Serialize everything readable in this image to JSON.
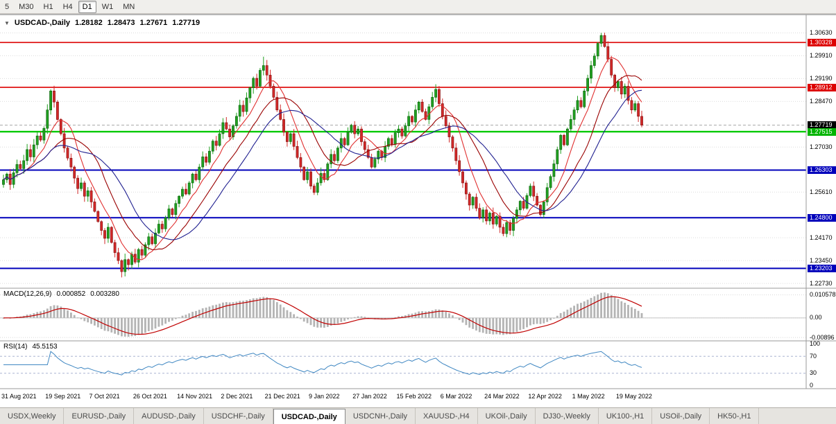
{
  "toolbar": {
    "timeframes": [
      "5",
      "M30",
      "H1",
      "H4",
      "D1",
      "W1",
      "MN"
    ],
    "selected": "D1"
  },
  "chart": {
    "collapse_icon": "▼",
    "symbol": "USDCAD-,Daily",
    "open": "1.28182",
    "high": "1.28473",
    "low": "1.27671",
    "close": "1.27719"
  },
  "macd_panel": {
    "name": "MACD(12,26,9)",
    "value1": "0.000852",
    "value2": "0.003280"
  },
  "rsi_panel": {
    "name": "RSI(14)",
    "value": "45.5153"
  },
  "price_axis": [
    {
      "label": "1.30630",
      "value": 1.3063,
      "badge": null
    },
    {
      "label": "1.30328",
      "value": 1.30328,
      "badge": "#dd0000"
    },
    {
      "label": "1.29910",
      "value": 1.2991,
      "badge": null
    },
    {
      "label": "1.29190",
      "value": 1.2919,
      "badge": null
    },
    {
      "label": "1.28912",
      "value": 1.28912,
      "badge": "#dd0000"
    },
    {
      "label": "1.28470",
      "value": 1.2847,
      "badge": null
    },
    {
      "label": "1.27719",
      "value": 1.27719,
      "badge": "#000000"
    },
    {
      "label": "1.27515",
      "value": 1.27515,
      "badge": "#00b400"
    },
    {
      "label": "1.27030",
      "value": 1.2703,
      "badge": null
    },
    {
      "label": "1.26303",
      "value": 1.26303,
      "badge": "#0000bb"
    },
    {
      "label": "1.25610",
      "value": 1.2561,
      "badge": null
    },
    {
      "label": "1.24800",
      "value": 1.248,
      "badge": "#0000bb"
    },
    {
      "label": "1.24170",
      "value": 1.2417,
      "badge": null
    },
    {
      "label": "1.23450",
      "value": 1.2345,
      "badge": null
    },
    {
      "label": "1.23203",
      "value": 1.23203,
      "badge": "#0000bb"
    },
    {
      "label": "1.22730",
      "value": 1.2273,
      "badge": null
    }
  ],
  "macd_axis": [
    {
      "label": "0.010578",
      "value": 0.010578
    },
    {
      "label": "0.00",
      "value": 0
    },
    {
      "label": "-0.00896",
      "value": -0.00896
    }
  ],
  "rsi_axis": [
    {
      "label": "100",
      "value": 100
    },
    {
      "label": "70",
      "value": 70
    },
    {
      "label": "30",
      "value": 30
    },
    {
      "label": "0",
      "value": 0
    }
  ],
  "time_axis": [
    {
      "label": "31 Aug 2021",
      "index": 0
    },
    {
      "label": "19 Sep 2021",
      "index": 13
    },
    {
      "label": "7 Oct 2021",
      "index": 26
    },
    {
      "label": "26 Oct 2021",
      "index": 39
    },
    {
      "label": "14 Nov 2021",
      "index": 52
    },
    {
      "label": "2 Dec 2021",
      "index": 65
    },
    {
      "label": "21 Dec 2021",
      "index": 78
    },
    {
      "label": "9 Jan 2022",
      "index": 91
    },
    {
      "label": "27 Jan 2022",
      "index": 104
    },
    {
      "label": "15 Feb 2022",
      "index": 117
    },
    {
      "label": "6 Mar 2022",
      "index": 130
    },
    {
      "label": "24 Mar 2022",
      "index": 143
    },
    {
      "label": "12 Apr 2022",
      "index": 156
    },
    {
      "label": "1 May 2022",
      "index": 169
    },
    {
      "label": "19 May 2022",
      "index": 182
    }
  ],
  "tabs": {
    "selected_index": 4,
    "items": [
      {
        "label": "USDX,Weekly"
      },
      {
        "label": "EURUSD-,Daily"
      },
      {
        "label": "AUDUSD-,Daily"
      },
      {
        "label": "USDCHF-,Daily"
      },
      {
        "label": "USDCAD-,Daily"
      },
      {
        "label": "USDCNH-,Daily"
      },
      {
        "label": "XAUUSD-,H4"
      },
      {
        "label": "UKOil-,Daily"
      },
      {
        "label": "DJ30-,Weekly"
      },
      {
        "label": "UK100-,H1"
      },
      {
        "label": "USOil-,Daily"
      },
      {
        "label": "HK50-,H1"
      }
    ]
  },
  "chart_data": {
    "type": "candlestick",
    "symbol": "USDCAD",
    "timeframe": "Daily",
    "title": "USDCAD-,Daily",
    "ohlc_current": {
      "open": 1.28182,
      "high": 1.28473,
      "low": 1.27671,
      "close": 1.27719
    },
    "ylim": [
      1.226,
      1.311
    ],
    "macd_ylim": [
      -0.0102,
      0.0133
    ],
    "rsi_ylim": [
      -5,
      105
    ],
    "rsi_levels": [
      70,
      30
    ],
    "macd_params": {
      "fast": 12,
      "slow": 26,
      "signal": 9
    },
    "rsi_params": {
      "period": 14
    },
    "closes": [
      1.26,
      1.2618,
      1.2585,
      1.2622,
      1.2648,
      1.2635,
      1.266,
      1.2695,
      1.2672,
      1.271,
      1.2738,
      1.2725,
      1.2762,
      1.282,
      1.288,
      1.2845,
      1.279,
      1.2745,
      1.27,
      1.2668,
      1.264,
      1.2605,
      1.2572,
      1.259,
      1.2548,
      1.2565,
      1.253,
      1.25,
      1.2468,
      1.244,
      1.2415,
      1.245,
      1.2402,
      1.237,
      1.2345,
      1.231,
      1.2348,
      1.2332,
      1.2365,
      1.234,
      1.238,
      1.2362,
      1.2395,
      1.242,
      1.2398,
      1.2432,
      1.246,
      1.2445,
      1.248,
      1.2508,
      1.249,
      1.2525,
      1.2548,
      1.257,
      1.2555,
      1.259,
      1.2618,
      1.26,
      1.264,
      1.2672,
      1.2655,
      1.269,
      1.2722,
      1.2708,
      1.2745,
      1.278,
      1.276,
      1.2735,
      1.277,
      1.28,
      1.2835,
      1.2815,
      1.2858,
      1.289,
      1.292,
      1.2895,
      1.2945,
      1.296,
      1.293,
      1.2895,
      1.286,
      1.282,
      1.279,
      1.275,
      1.272,
      1.2745,
      1.2705,
      1.267,
      1.264,
      1.26,
      1.2625,
      1.258,
      1.256,
      1.259,
      1.262,
      1.26,
      1.265,
      1.268,
      1.266,
      1.27,
      1.273,
      1.271,
      1.275,
      1.2772,
      1.2745,
      1.276,
      1.272,
      1.2695,
      1.267,
      1.264,
      1.2665,
      1.269,
      1.267,
      1.2705,
      1.273,
      1.2712,
      1.2748,
      1.276,
      1.2738,
      1.277,
      1.28,
      1.2782,
      1.282,
      1.2845,
      1.2815,
      1.279,
      1.283,
      1.286,
      1.2885,
      1.284,
      1.28,
      1.277,
      1.2735,
      1.27,
      1.266,
      1.2625,
      1.259,
      1.2555,
      1.252,
      1.2545,
      1.251,
      1.248,
      1.2505,
      1.247,
      1.2495,
      1.246,
      1.2485,
      1.245,
      1.243,
      1.2465,
      1.244,
      1.2478,
      1.2505,
      1.2532,
      1.251,
      1.255,
      1.258,
      1.2548,
      1.252,
      1.249,
      1.253,
      1.2575,
      1.261,
      1.265,
      1.2695,
      1.274,
      1.271,
      1.276,
      1.279,
      1.282,
      1.285,
      1.283,
      1.288,
      1.292,
      1.296,
      1.299,
      1.303,
      1.3055,
      1.302,
      1.298,
      1.293,
      1.289,
      1.291,
      1.287,
      1.2895,
      1.285,
      1.282,
      1.284,
      1.28,
      1.2772
    ],
    "wick_overrides": {
      "35": {
        "low": 1.2292
      },
      "77": {
        "high": 1.2988
      },
      "177": {
        "high": 1.3063
      }
    },
    "hlines": [
      {
        "price": 1.30328,
        "color": "#dd0000",
        "width": 1.6
      },
      {
        "price": 1.28912,
        "color": "#dd0000",
        "width": 1.6
      },
      {
        "price": 1.27515,
        "color": "#00ca00",
        "width": 2.4
      },
      {
        "price": 1.26303,
        "color": "#0000bb",
        "width": 2
      },
      {
        "price": 1.248,
        "color": "#0000bb",
        "width": 2
      },
      {
        "price": 1.23203,
        "color": "#0000bb",
        "width": 2
      }
    ],
    "current_price_line": {
      "price": 1.27719,
      "color": "#999999"
    },
    "moving_averages": [
      {
        "period": 8,
        "color": "#e03030"
      },
      {
        "period": 16,
        "color": "#990000"
      },
      {
        "period": 24,
        "color": "#202090"
      }
    ],
    "colors": {
      "up": "#20a020",
      "up_border": "#0e5c0e",
      "down": "#d22828",
      "down_border": "#7c1212",
      "macd_hist": "#b4b4b4",
      "macd_signal": "#c00000",
      "rsi_line": "#3f87c2",
      "grid": "#dcdcdc"
    }
  }
}
